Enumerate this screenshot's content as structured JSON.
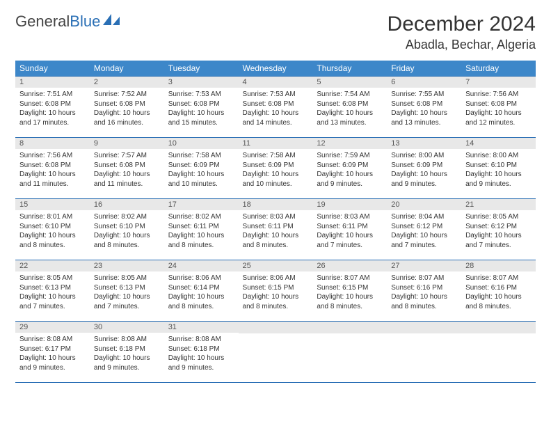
{
  "brand": {
    "name_part1": "General",
    "name_part2": "Blue"
  },
  "title": "December 2024",
  "location": "Abadla, Bechar, Algeria",
  "colors": {
    "header_bg": "#3d87c9",
    "header_fg": "#ffffff",
    "row_border": "#2a6fb5",
    "daynum_bg": "#e8e8e8",
    "text": "#333333"
  },
  "weekdays": [
    "Sunday",
    "Monday",
    "Tuesday",
    "Wednesday",
    "Thursday",
    "Friday",
    "Saturday"
  ],
  "weeks": [
    [
      {
        "n": "1",
        "sr": "Sunrise: 7:51 AM",
        "ss": "Sunset: 6:08 PM",
        "dl": "Daylight: 10 hours and 17 minutes."
      },
      {
        "n": "2",
        "sr": "Sunrise: 7:52 AM",
        "ss": "Sunset: 6:08 PM",
        "dl": "Daylight: 10 hours and 16 minutes."
      },
      {
        "n": "3",
        "sr": "Sunrise: 7:53 AM",
        "ss": "Sunset: 6:08 PM",
        "dl": "Daylight: 10 hours and 15 minutes."
      },
      {
        "n": "4",
        "sr": "Sunrise: 7:53 AM",
        "ss": "Sunset: 6:08 PM",
        "dl": "Daylight: 10 hours and 14 minutes."
      },
      {
        "n": "5",
        "sr": "Sunrise: 7:54 AM",
        "ss": "Sunset: 6:08 PM",
        "dl": "Daylight: 10 hours and 13 minutes."
      },
      {
        "n": "6",
        "sr": "Sunrise: 7:55 AM",
        "ss": "Sunset: 6:08 PM",
        "dl": "Daylight: 10 hours and 13 minutes."
      },
      {
        "n": "7",
        "sr": "Sunrise: 7:56 AM",
        "ss": "Sunset: 6:08 PM",
        "dl": "Daylight: 10 hours and 12 minutes."
      }
    ],
    [
      {
        "n": "8",
        "sr": "Sunrise: 7:56 AM",
        "ss": "Sunset: 6:08 PM",
        "dl": "Daylight: 10 hours and 11 minutes."
      },
      {
        "n": "9",
        "sr": "Sunrise: 7:57 AM",
        "ss": "Sunset: 6:08 PM",
        "dl": "Daylight: 10 hours and 11 minutes."
      },
      {
        "n": "10",
        "sr": "Sunrise: 7:58 AM",
        "ss": "Sunset: 6:09 PM",
        "dl": "Daylight: 10 hours and 10 minutes."
      },
      {
        "n": "11",
        "sr": "Sunrise: 7:58 AM",
        "ss": "Sunset: 6:09 PM",
        "dl": "Daylight: 10 hours and 10 minutes."
      },
      {
        "n": "12",
        "sr": "Sunrise: 7:59 AM",
        "ss": "Sunset: 6:09 PM",
        "dl": "Daylight: 10 hours and 9 minutes."
      },
      {
        "n": "13",
        "sr": "Sunrise: 8:00 AM",
        "ss": "Sunset: 6:09 PM",
        "dl": "Daylight: 10 hours and 9 minutes."
      },
      {
        "n": "14",
        "sr": "Sunrise: 8:00 AM",
        "ss": "Sunset: 6:10 PM",
        "dl": "Daylight: 10 hours and 9 minutes."
      }
    ],
    [
      {
        "n": "15",
        "sr": "Sunrise: 8:01 AM",
        "ss": "Sunset: 6:10 PM",
        "dl": "Daylight: 10 hours and 8 minutes."
      },
      {
        "n": "16",
        "sr": "Sunrise: 8:02 AM",
        "ss": "Sunset: 6:10 PM",
        "dl": "Daylight: 10 hours and 8 minutes."
      },
      {
        "n": "17",
        "sr": "Sunrise: 8:02 AM",
        "ss": "Sunset: 6:11 PM",
        "dl": "Daylight: 10 hours and 8 minutes."
      },
      {
        "n": "18",
        "sr": "Sunrise: 8:03 AM",
        "ss": "Sunset: 6:11 PM",
        "dl": "Daylight: 10 hours and 8 minutes."
      },
      {
        "n": "19",
        "sr": "Sunrise: 8:03 AM",
        "ss": "Sunset: 6:11 PM",
        "dl": "Daylight: 10 hours and 7 minutes."
      },
      {
        "n": "20",
        "sr": "Sunrise: 8:04 AM",
        "ss": "Sunset: 6:12 PM",
        "dl": "Daylight: 10 hours and 7 minutes."
      },
      {
        "n": "21",
        "sr": "Sunrise: 8:05 AM",
        "ss": "Sunset: 6:12 PM",
        "dl": "Daylight: 10 hours and 7 minutes."
      }
    ],
    [
      {
        "n": "22",
        "sr": "Sunrise: 8:05 AM",
        "ss": "Sunset: 6:13 PM",
        "dl": "Daylight: 10 hours and 7 minutes."
      },
      {
        "n": "23",
        "sr": "Sunrise: 8:05 AM",
        "ss": "Sunset: 6:13 PM",
        "dl": "Daylight: 10 hours and 7 minutes."
      },
      {
        "n": "24",
        "sr": "Sunrise: 8:06 AM",
        "ss": "Sunset: 6:14 PM",
        "dl": "Daylight: 10 hours and 8 minutes."
      },
      {
        "n": "25",
        "sr": "Sunrise: 8:06 AM",
        "ss": "Sunset: 6:15 PM",
        "dl": "Daylight: 10 hours and 8 minutes."
      },
      {
        "n": "26",
        "sr": "Sunrise: 8:07 AM",
        "ss": "Sunset: 6:15 PM",
        "dl": "Daylight: 10 hours and 8 minutes."
      },
      {
        "n": "27",
        "sr": "Sunrise: 8:07 AM",
        "ss": "Sunset: 6:16 PM",
        "dl": "Daylight: 10 hours and 8 minutes."
      },
      {
        "n": "28",
        "sr": "Sunrise: 8:07 AM",
        "ss": "Sunset: 6:16 PM",
        "dl": "Daylight: 10 hours and 8 minutes."
      }
    ],
    [
      {
        "n": "29",
        "sr": "Sunrise: 8:08 AM",
        "ss": "Sunset: 6:17 PM",
        "dl": "Daylight: 10 hours and 9 minutes."
      },
      {
        "n": "30",
        "sr": "Sunrise: 8:08 AM",
        "ss": "Sunset: 6:18 PM",
        "dl": "Daylight: 10 hours and 9 minutes."
      },
      {
        "n": "31",
        "sr": "Sunrise: 8:08 AM",
        "ss": "Sunset: 6:18 PM",
        "dl": "Daylight: 10 hours and 9 minutes."
      },
      null,
      null,
      null,
      null
    ]
  ]
}
